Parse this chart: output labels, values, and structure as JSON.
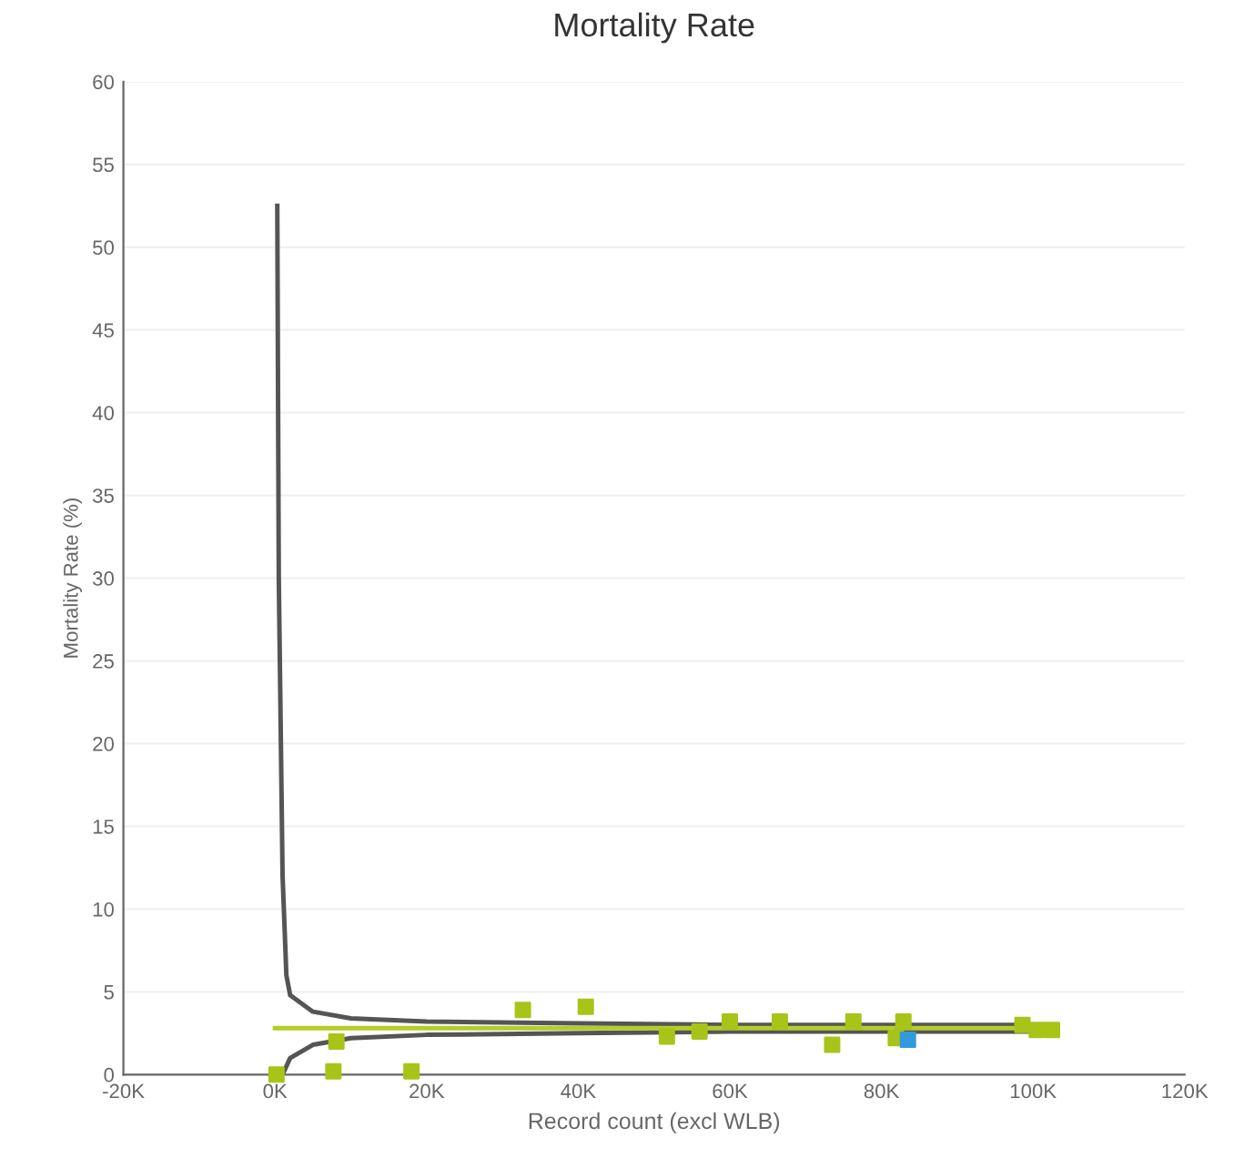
{
  "chart_data": {
    "type": "scatter",
    "title": "Mortality Rate",
    "xlabel": "Record count (excl WLB)",
    "ylabel": "Mortality Rate (%)",
    "xlim": [
      -20000,
      120000
    ],
    "xticks": [
      {
        "value": -20000,
        "label": "-20K"
      },
      {
        "value": 0,
        "label": "0K"
      },
      {
        "value": 20000,
        "label": "20K"
      },
      {
        "value": 40000,
        "label": "40K"
      },
      {
        "value": 60000,
        "label": "60K"
      },
      {
        "value": 80000,
        "label": "80K"
      },
      {
        "value": 100000,
        "label": "100K"
      },
      {
        "value": 120000,
        "label": "120K"
      }
    ],
    "ylim": [
      0,
      60
    ],
    "yticks": [
      0,
      5,
      10,
      15,
      20,
      25,
      30,
      35,
      40,
      45,
      50,
      55,
      60
    ],
    "grid": "y",
    "legend": false,
    "series": [
      {
        "type": "line",
        "color": "#555555",
        "x": [
          300,
          500,
          1000,
          1500,
          2000,
          5000,
          10000,
          20000,
          40000,
          60000,
          80000,
          102000
        ],
        "values": [
          52.5,
          30,
          12,
          6,
          4.8,
          3.8,
          3.4,
          3.2,
          3.1,
          3.0,
          3.0,
          3.0
        ]
      },
      {
        "type": "line",
        "color": "#555555",
        "x": [
          1000,
          2000,
          5000,
          10000,
          20000,
          40000,
          60000,
          80000,
          102000
        ],
        "values": [
          0,
          1.0,
          1.8,
          2.2,
          2.4,
          2.5,
          2.6,
          2.6,
          2.6
        ]
      },
      {
        "type": "line",
        "color": "#b5cc2a",
        "x": [
          0,
          102000
        ],
        "values": [
          2.8,
          2.8
        ]
      },
      {
        "marker": "square",
        "x": [
          200,
          7700,
          8100,
          18000,
          32700,
          41000,
          51700,
          56000,
          60000,
          66600,
          73500,
          76300,
          81900,
          82900,
          83500,
          98600,
          100500,
          102500
        ],
        "values": [
          0,
          0.2,
          2.0,
          0.2,
          3.9,
          4.1,
          2.3,
          2.6,
          3.2,
          3.2,
          1.8,
          3.2,
          2.2,
          3.2,
          2.1,
          3.0,
          2.7,
          2.7
        ],
        "colors": [
          "#a8c418",
          "#a8c418",
          "#a8c418",
          "#a8c418",
          "#a8c418",
          "#a8c418",
          "#a8c418",
          "#a8c418",
          "#a8c418",
          "#a8c418",
          "#a8c418",
          "#a8c418",
          "#a8c418",
          "#a8c418",
          "#3399dd",
          "#a8c418",
          "#a8c418",
          "#a8c418"
        ]
      }
    ]
  }
}
